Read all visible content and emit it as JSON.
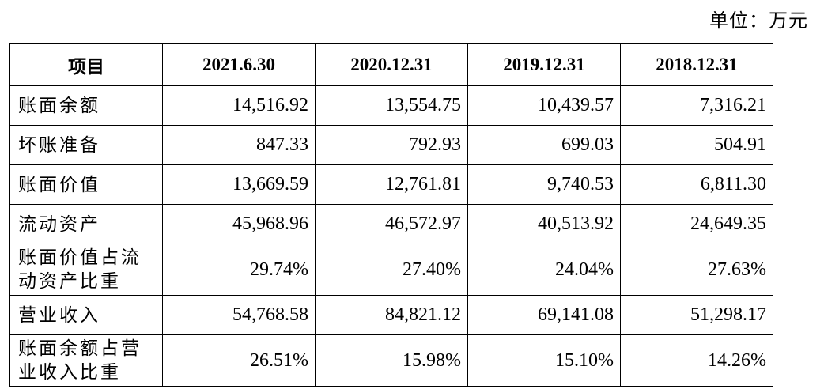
{
  "unit_label": "单位：万元",
  "table": {
    "headers": [
      "项目",
      "2021.6.30",
      "2020.12.31",
      "2019.12.31",
      "2018.12.31"
    ],
    "rows": [
      {
        "label": "账面余额",
        "values": [
          "14,516.92",
          "13,554.75",
          "10,439.57",
          "7,316.21"
        ]
      },
      {
        "label": "坏账准备",
        "values": [
          "847.33",
          "792.93",
          "699.03",
          "504.91"
        ]
      },
      {
        "label": "账面价值",
        "values": [
          "13,669.59",
          "12,761.81",
          "9,740.53",
          "6,811.30"
        ]
      },
      {
        "label": "流动资产",
        "values": [
          "45,968.96",
          "46,572.97",
          "40,513.92",
          "24,649.35"
        ]
      },
      {
        "label": "账面价值占流动资产比重",
        "values": [
          "29.74%",
          "27.40%",
          "24.04%",
          "27.63%"
        ]
      },
      {
        "label": "营业收入",
        "values": [
          "54,768.58",
          "84,821.12",
          "69,141.08",
          "51,298.17"
        ]
      },
      {
        "label": "账面余额占营业收入比重",
        "values": [
          "26.51%",
          "15.98%",
          "15.10%",
          "14.26%"
        ]
      }
    ]
  }
}
